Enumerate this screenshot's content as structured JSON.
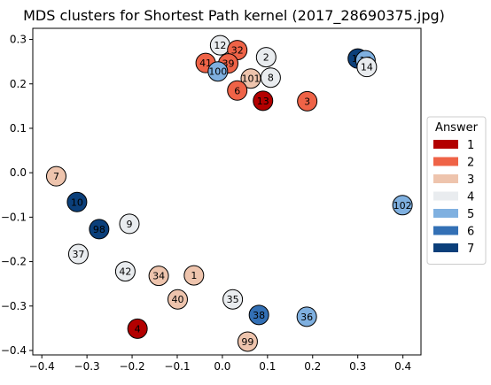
{
  "chart_data": {
    "type": "scatter",
    "title": "MDS clusters for Shortest Path kernel (2017_28690375.jpg)",
    "xlabel": "",
    "ylabel": "",
    "xlim": [
      -0.42,
      0.44
    ],
    "ylim": [
      -0.41,
      0.325
    ],
    "x_ticks": [
      -0.4,
      -0.3,
      -0.2,
      -0.1,
      0.0,
      0.1,
      0.2,
      0.3,
      0.4
    ],
    "x_tick_labels": [
      "−0.4",
      "−0.3",
      "−0.2",
      "−0.1",
      "0.0",
      "0.1",
      "0.2",
      "0.3",
      "0.4"
    ],
    "y_ticks": [
      0.3,
      0.2,
      0.1,
      0.0,
      -0.1,
      -0.2,
      -0.3,
      -0.4
    ],
    "y_tick_labels": [
      "0.3",
      "0.2",
      "0.1",
      "0.0",
      "−0.1",
      "−0.2",
      "−0.3",
      "−0.4"
    ],
    "grid": false,
    "legend": {
      "title": "Answer",
      "placement": "right",
      "entries": [
        {
          "label": "1",
          "color": "#b30000"
        },
        {
          "label": "2",
          "color": "#ef6347"
        },
        {
          "label": "3",
          "color": "#eec4ad"
        },
        {
          "label": "4",
          "color": "#e9ecef"
        },
        {
          "label": "5",
          "color": "#7fb0e0"
        },
        {
          "label": "6",
          "color": "#3370b5"
        },
        {
          "label": "7",
          "color": "#0b3f7a"
        }
      ]
    },
    "points": [
      {
        "label": "12",
        "x": -0.005,
        "y": 0.287,
        "answer": 4
      },
      {
        "label": "32",
        "x": 0.033,
        "y": 0.276,
        "answer": 2
      },
      {
        "label": "2",
        "x": 0.097,
        "y": 0.26,
        "answer": 4
      },
      {
        "label": "41",
        "x": -0.037,
        "y": 0.247,
        "answer": 2
      },
      {
        "label": "39",
        "x": 0.013,
        "y": 0.246,
        "answer": 2
      },
      {
        "label": "100",
        "x": -0.01,
        "y": 0.228,
        "answer": 5
      },
      {
        "label": "101",
        "x": 0.063,
        "y": 0.212,
        "answer": 3
      },
      {
        "label": "8",
        "x": 0.107,
        "y": 0.214,
        "answer": 4
      },
      {
        "label": "6",
        "x": 0.033,
        "y": 0.185,
        "answer": 2
      },
      {
        "label": "13",
        "x": 0.09,
        "y": 0.162,
        "answer": 1
      },
      {
        "label": "3",
        "x": 0.188,
        "y": 0.161,
        "answer": 2
      },
      {
        "label": "11",
        "x": 0.3,
        "y": 0.257,
        "answer": 7
      },
      {
        "label": "15",
        "x": 0.317,
        "y": 0.253,
        "answer": 5
      },
      {
        "label": "14",
        "x": 0.32,
        "y": 0.238,
        "answer": 4
      },
      {
        "label": "7",
        "x": -0.368,
        "y": -0.008,
        "answer": 3
      },
      {
        "label": "102",
        "x": 0.399,
        "y": -0.073,
        "answer": 5
      },
      {
        "label": "10",
        "x": -0.322,
        "y": -0.066,
        "answer": 7
      },
      {
        "label": "9",
        "x": -0.206,
        "y": -0.115,
        "answer": 4
      },
      {
        "label": "98",
        "x": -0.273,
        "y": -0.127,
        "answer": 7
      },
      {
        "label": "37",
        "x": -0.319,
        "y": -0.183,
        "answer": 4
      },
      {
        "label": "42",
        "x": -0.215,
        "y": -0.222,
        "answer": 4
      },
      {
        "label": "34",
        "x": -0.141,
        "y": -0.232,
        "answer": 3
      },
      {
        "label": "1",
        "x": -0.063,
        "y": -0.231,
        "answer": 3
      },
      {
        "label": "40",
        "x": -0.099,
        "y": -0.285,
        "answer": 3
      },
      {
        "label": "35",
        "x": 0.023,
        "y": -0.285,
        "answer": 4
      },
      {
        "label": "38",
        "x": 0.081,
        "y": -0.32,
        "answer": 6
      },
      {
        "label": "36",
        "x": 0.187,
        "y": -0.324,
        "answer": 5
      },
      {
        "label": "4",
        "x": -0.188,
        "y": -0.351,
        "answer": 1
      },
      {
        "label": "99",
        "x": 0.056,
        "y": -0.38,
        "answer": 3
      }
    ]
  }
}
